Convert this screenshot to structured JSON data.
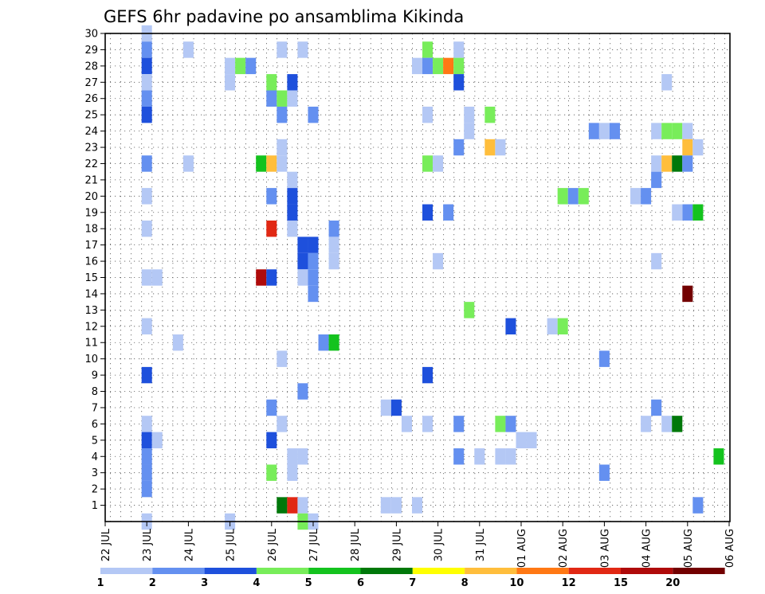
{
  "chart_data": {
    "type": "heatmap",
    "title": "GEFS 6hr padavine po ansamblima Kikinda",
    "xlabel": "",
    "ylabel": "",
    "x_unit": "day of period (day 0 = 22 JUL 00Z)",
    "xlim": [
      0,
      15
    ],
    "ylim": [
      0,
      30
    ],
    "x_tick_labels": [
      "22 JUL",
      "23 JUL",
      "24 JUL",
      "25 JUL",
      "26 JUL",
      "27 JUL",
      "28 JUL",
      "29 JUL",
      "30 JUL",
      "31 JUL",
      "01 AUG",
      "02 AUG",
      "03 AUG",
      "04 AUG",
      "05 AUG",
      "06 AUG"
    ],
    "y_tick_labels": [
      "1",
      "2",
      "3",
      "4",
      "5",
      "6",
      "7",
      "8",
      "9",
      "10",
      "11",
      "12",
      "13",
      "14",
      "15",
      "16",
      "17",
      "18",
      "19",
      "20",
      "21",
      "22",
      "23",
      "24",
      "25",
      "26",
      "27",
      "28",
      "29",
      "30"
    ],
    "grid": true,
    "colorbar": {
      "labels": [
        "1",
        "2",
        "3",
        "4",
        "5",
        "6",
        "7",
        "8",
        "10",
        "12",
        "15",
        "20"
      ],
      "colors": [
        "#b4c8f5",
        "#6490f0",
        "#1e50dc",
        "#78ed5a",
        "#14c31e",
        "#00780a",
        "#ffff00",
        "#ffbe3c",
        "#ff7814",
        "#e12814",
        "#af0a0a",
        "#730000"
      ],
      "legend_position": "bottom"
    },
    "cells": [
      [
        1,
        30,
        "#b4c8f5"
      ],
      [
        1,
        29,
        "#6490f0"
      ],
      [
        1,
        28,
        "#1e50dc"
      ],
      [
        1,
        27,
        "#b4c8f5"
      ],
      [
        1,
        26,
        "#6490f0"
      ],
      [
        1,
        25,
        "#1e50dc"
      ],
      [
        1,
        22,
        "#6490f0"
      ],
      [
        1,
        20,
        "#b4c8f5"
      ],
      [
        1,
        18,
        "#b4c8f5"
      ],
      [
        1,
        15,
        "#b4c8f5"
      ],
      [
        1,
        12,
        "#b4c8f5"
      ],
      [
        1,
        9,
        "#1e50dc"
      ],
      [
        1,
        6,
        "#b4c8f5"
      ],
      [
        1,
        5,
        "#1e50dc"
      ],
      [
        1,
        4,
        "#6490f0"
      ],
      [
        1,
        3,
        "#6490f0"
      ],
      [
        1,
        2,
        "#6490f0"
      ],
      [
        1,
        0,
        "#b4c8f5"
      ],
      [
        1.25,
        15,
        "#b4c8f5"
      ],
      [
        1.25,
        5,
        "#b4c8f5"
      ],
      [
        1.75,
        11,
        "#b4c8f5"
      ],
      [
        2,
        29,
        "#b4c8f5"
      ],
      [
        2,
        22,
        "#b4c8f5"
      ],
      [
        3,
        28,
        "#b4c8f5"
      ],
      [
        3,
        27,
        "#b4c8f5"
      ],
      [
        3,
        0,
        "#b4c8f5"
      ],
      [
        3.25,
        28,
        "#78ed5a"
      ],
      [
        3.5,
        28,
        "#6490f0"
      ],
      [
        3.75,
        22,
        "#14c31e"
      ],
      [
        3.75,
        15,
        "#af0a0a"
      ],
      [
        4,
        27,
        "#78ed5a"
      ],
      [
        4,
        26,
        "#6490f0"
      ],
      [
        4,
        22,
        "#ffbe3c"
      ],
      [
        4,
        20,
        "#6490f0"
      ],
      [
        4,
        18,
        "#e12814"
      ],
      [
        4,
        15,
        "#1e50dc"
      ],
      [
        4,
        7,
        "#6490f0"
      ],
      [
        4,
        5,
        "#1e50dc"
      ],
      [
        4,
        3,
        "#78ed5a"
      ],
      [
        4.25,
        29,
        "#b4c8f5"
      ],
      [
        4.25,
        26,
        "#78ed5a"
      ],
      [
        4.25,
        25,
        "#6490f0"
      ],
      [
        4.25,
        23,
        "#b4c8f5"
      ],
      [
        4.25,
        22,
        "#b4c8f5"
      ],
      [
        4.25,
        10,
        "#b4c8f5"
      ],
      [
        4.25,
        6,
        "#b4c8f5"
      ],
      [
        4.25,
        1,
        "#00780a"
      ],
      [
        4.5,
        27,
        "#1e50dc"
      ],
      [
        4.5,
        26,
        "#b4c8f5"
      ],
      [
        4.5,
        21,
        "#b4c8f5"
      ],
      [
        4.5,
        20,
        "#1e50dc"
      ],
      [
        4.5,
        19,
        "#1e50dc"
      ],
      [
        4.5,
        18,
        "#b4c8f5"
      ],
      [
        4.5,
        4,
        "#b4c8f5"
      ],
      [
        4.5,
        3,
        "#b4c8f5"
      ],
      [
        4.5,
        1,
        "#e12814"
      ],
      [
        4.75,
        29,
        "#b4c8f5"
      ],
      [
        4.75,
        17,
        "#1e50dc"
      ],
      [
        4.75,
        16,
        "#1e50dc"
      ],
      [
        4.75,
        15,
        "#b4c8f5"
      ],
      [
        4.75,
        8,
        "#6490f0"
      ],
      [
        4.75,
        4,
        "#b4c8f5"
      ],
      [
        4.75,
        1,
        "#b4c8f5"
      ],
      [
        4.75,
        0,
        "#78ed5a"
      ],
      [
        5,
        25,
        "#6490f0"
      ],
      [
        5,
        17,
        "#1e50dc"
      ],
      [
        5,
        16,
        "#6490f0"
      ],
      [
        5,
        15,
        "#6490f0"
      ],
      [
        5,
        14,
        "#6490f0"
      ],
      [
        5,
        0,
        "#b4c8f5"
      ],
      [
        5.25,
        11,
        "#6490f0"
      ],
      [
        5.5,
        18,
        "#6490f0"
      ],
      [
        5.5,
        17,
        "#b4c8f5"
      ],
      [
        5.5,
        16,
        "#b4c8f5"
      ],
      [
        5.5,
        11,
        "#14c31e"
      ],
      [
        6.75,
        7,
        "#b4c8f5"
      ],
      [
        6.75,
        1,
        "#b4c8f5"
      ],
      [
        7,
        7,
        "#1e50dc"
      ],
      [
        7,
        1,
        "#b4c8f5"
      ],
      [
        7.25,
        6,
        "#b4c8f5"
      ],
      [
        7.5,
        28,
        "#b4c8f5"
      ],
      [
        7.5,
        1,
        "#b4c8f5"
      ],
      [
        7.75,
        29,
        "#78ed5a"
      ],
      [
        7.75,
        28,
        "#6490f0"
      ],
      [
        7.75,
        25,
        "#b4c8f5"
      ],
      [
        7.75,
        22,
        "#78ed5a"
      ],
      [
        7.75,
        19,
        "#1e50dc"
      ],
      [
        7.75,
        9,
        "#1e50dc"
      ],
      [
        7.75,
        6,
        "#b4c8f5"
      ],
      [
        8,
        28,
        "#78ed5a"
      ],
      [
        8,
        22,
        "#b4c8f5"
      ],
      [
        8,
        16,
        "#b4c8f5"
      ],
      [
        8.25,
        28,
        "#ff7814"
      ],
      [
        8.25,
        19,
        "#6490f0"
      ],
      [
        8.5,
        29,
        "#b4c8f5"
      ],
      [
        8.5,
        28,
        "#78ed5a"
      ],
      [
        8.5,
        27,
        "#1e50dc"
      ],
      [
        8.5,
        23,
        "#6490f0"
      ],
      [
        8.5,
        6,
        "#6490f0"
      ],
      [
        8.5,
        4,
        "#6490f0"
      ],
      [
        8.75,
        25,
        "#b4c8f5"
      ],
      [
        8.75,
        24,
        "#b4c8f5"
      ],
      [
        8.75,
        13,
        "#78ed5a"
      ],
      [
        9,
        4,
        "#b4c8f5"
      ],
      [
        9.25,
        25,
        "#78ed5a"
      ],
      [
        9.25,
        23,
        "#ffbe3c"
      ],
      [
        9.5,
        23,
        "#b4c8f5"
      ],
      [
        9.5,
        6,
        "#78ed5a"
      ],
      [
        9.5,
        4,
        "#b4c8f5"
      ],
      [
        9.75,
        12,
        "#1e50dc"
      ],
      [
        9.75,
        6,
        "#6490f0"
      ],
      [
        9.75,
        4,
        "#b4c8f5"
      ],
      [
        10,
        5,
        "#b4c8f5"
      ],
      [
        10.25,
        5,
        "#b4c8f5"
      ],
      [
        10.75,
        12,
        "#b4c8f5"
      ],
      [
        11,
        20,
        "#78ed5a"
      ],
      [
        11,
        12,
        "#78ed5a"
      ],
      [
        11.25,
        20,
        "#6490f0"
      ],
      [
        11.5,
        20,
        "#78ed5a"
      ],
      [
        11.75,
        24,
        "#6490f0"
      ],
      [
        12,
        24,
        "#b4c8f5"
      ],
      [
        12,
        10,
        "#6490f0"
      ],
      [
        12,
        3,
        "#6490f0"
      ],
      [
        12.25,
        24,
        "#6490f0"
      ],
      [
        12.75,
        20,
        "#b4c8f5"
      ],
      [
        13,
        20,
        "#6490f0"
      ],
      [
        13,
        6,
        "#b4c8f5"
      ],
      [
        13.25,
        24,
        "#b4c8f5"
      ],
      [
        13.25,
        22,
        "#b4c8f5"
      ],
      [
        13.25,
        21,
        "#6490f0"
      ],
      [
        13.25,
        16,
        "#b4c8f5"
      ],
      [
        13.25,
        7,
        "#6490f0"
      ],
      [
        13.5,
        27,
        "#b4c8f5"
      ],
      [
        13.5,
        24,
        "#78ed5a"
      ],
      [
        13.5,
        22,
        "#ffbe3c"
      ],
      [
        13.5,
        6,
        "#b4c8f5"
      ],
      [
        13.75,
        24,
        "#78ed5a"
      ],
      [
        13.75,
        22,
        "#00780a"
      ],
      [
        13.75,
        6,
        "#00780a"
      ],
      [
        14,
        24,
        "#b4c8f5"
      ],
      [
        14,
        23,
        "#ffbe3c"
      ],
      [
        14,
        22,
        "#6490f0"
      ],
      [
        14,
        19,
        "#6490f0"
      ],
      [
        14,
        14,
        "#730000"
      ],
      [
        13.75,
        19,
        "#b4c8f5"
      ],
      [
        14.25,
        23,
        "#b4c8f5"
      ],
      [
        14.25,
        19,
        "#14c31e"
      ],
      [
        14.25,
        1,
        "#6490f0"
      ],
      [
        14.75,
        4,
        "#14c31e"
      ]
    ]
  }
}
